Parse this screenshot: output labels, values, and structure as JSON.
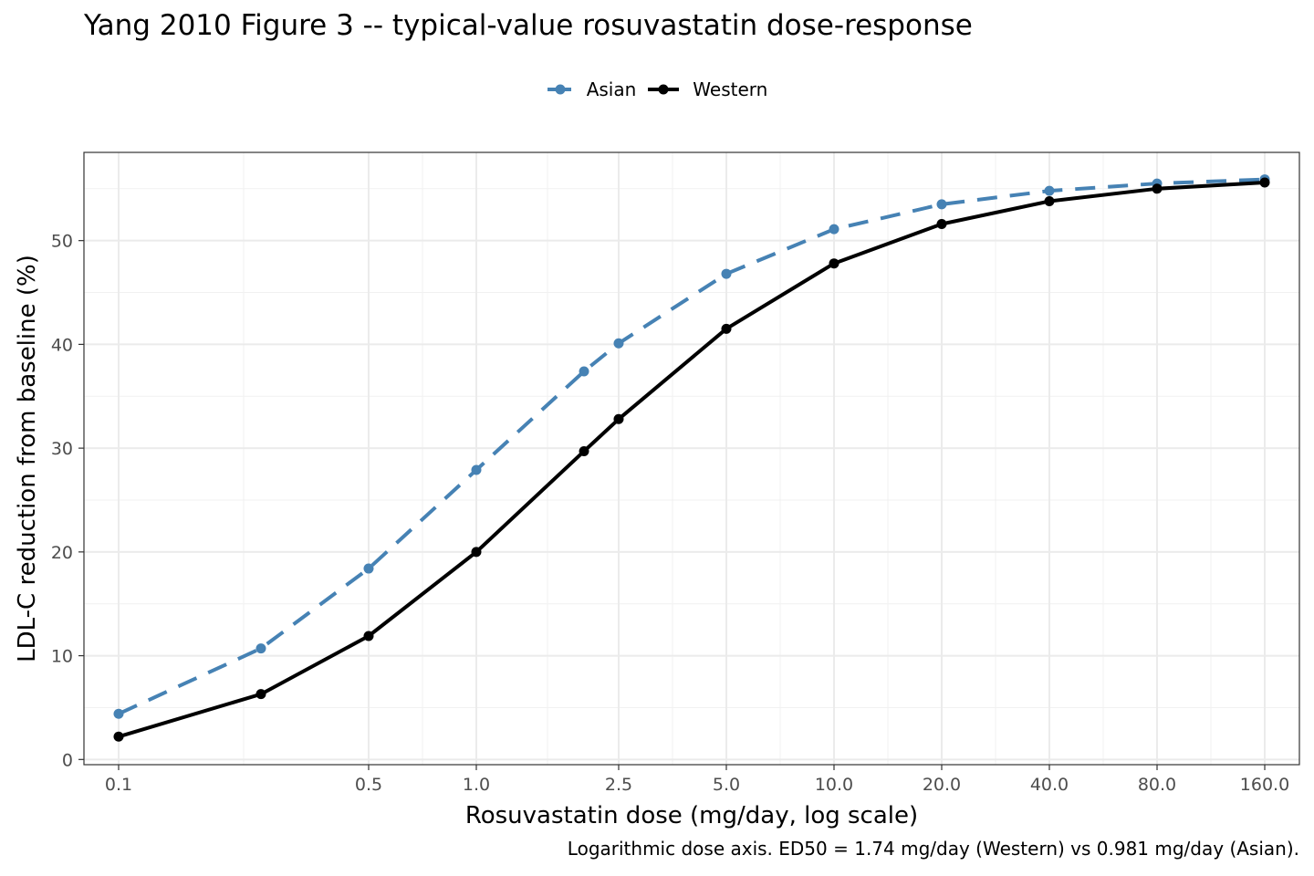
{
  "chart_data": {
    "type": "line",
    "title": "Yang 2010 Figure 3 -- typical-value rosuvastatin dose-response",
    "xlabel": "Rosuvastatin dose (mg/day, log scale)",
    "ylabel": "LDL-C reduction from baseline (%)",
    "caption": "Logarithmic dose axis. ED50 = 1.74 mg/day (Western) vs 0.981 mg/day (Asian).",
    "x_scale": "log",
    "xlim": [
      0.08,
      200
    ],
    "ylim": [
      -0.5,
      58.5
    ],
    "x_ticks": [
      0.1,
      0.5,
      1.0,
      2.5,
      5.0,
      10.0,
      20.0,
      40.0,
      80.0,
      160.0
    ],
    "x_tick_labels": [
      "0.1",
      "0.5",
      "1.0",
      "2.5",
      "5.0",
      "10.0",
      "20.0",
      "40.0",
      "80.0",
      "160.0"
    ],
    "y_ticks": [
      0,
      10,
      20,
      30,
      40,
      50
    ],
    "y_tick_labels": [
      "0",
      "10",
      "20",
      "30",
      "40",
      "50"
    ],
    "grid": true,
    "legend_position": "top",
    "x": [
      0.1,
      0.25,
      0.5,
      1.0,
      2.0,
      2.5,
      5.0,
      10.0,
      20.0,
      40.0,
      80.0,
      160.0
    ],
    "series": [
      {
        "name": "Asian",
        "color": "#4682B4",
        "line_style": "dashed",
        "values": [
          4.4,
          10.7,
          18.4,
          27.9,
          37.4,
          40.1,
          46.8,
          51.1,
          53.5,
          54.8,
          55.5,
          55.9
        ]
      },
      {
        "name": "Western",
        "color": "#000000",
        "line_style": "solid",
        "values": [
          2.2,
          6.3,
          11.9,
          20.0,
          29.7,
          32.8,
          41.5,
          47.8,
          51.6,
          53.8,
          55.0,
          55.6
        ]
      }
    ]
  }
}
